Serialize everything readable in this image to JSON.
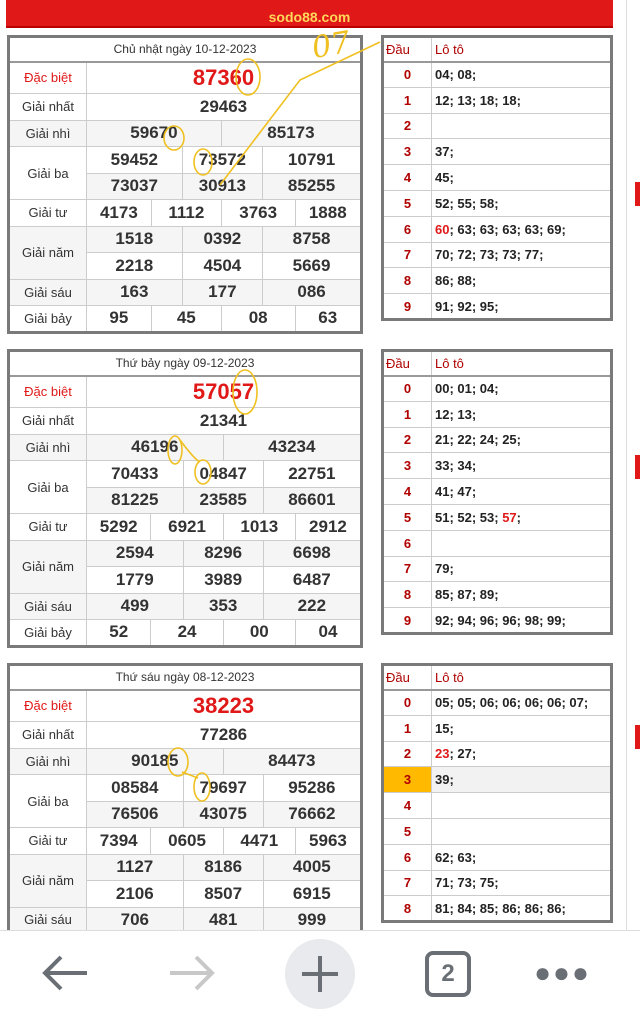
{
  "banner": {
    "site": "sodo88.com"
  },
  "handwriting": {
    "note": "07"
  },
  "colors": {
    "accent": "#e01818",
    "highlight": "#ffba00",
    "annotation": "#f0c020"
  },
  "results": [
    {
      "title": "Chủ nhật ngày 10-12-2023",
      "prizes": [
        {
          "label": "Đặc biệt",
          "numbers": [
            "87360"
          ]
        },
        {
          "label": "Giải nhất",
          "numbers": [
            "29463"
          ]
        },
        {
          "label": "Giải nhì",
          "numbers": [
            "59670",
            "85173"
          ]
        },
        {
          "label": "Giải ba",
          "numbers": [
            "59452",
            "73572",
            "10791",
            "73037",
            "30913",
            "85255"
          ]
        },
        {
          "label": "Giải tư",
          "numbers": [
            "4173",
            "1112",
            "3763",
            "1888"
          ]
        },
        {
          "label": "Giải năm",
          "numbers": [
            "1518",
            "0392",
            "8758",
            "2218",
            "4504",
            "5669"
          ]
        },
        {
          "label": "Giải sáu",
          "numbers": [
            "163",
            "177",
            "086"
          ]
        },
        {
          "label": "Giải bảy",
          "numbers": [
            "95",
            "45",
            "08",
            "63"
          ]
        }
      ],
      "loto_header": {
        "dau": "Đầu",
        "loto": "Lô tô"
      },
      "loto": [
        {
          "dau": "0",
          "red": "",
          "values": "04; 08;"
        },
        {
          "dau": "1",
          "red": "",
          "values": "12; 13; 18; 18;"
        },
        {
          "dau": "2",
          "red": "",
          "values": ""
        },
        {
          "dau": "3",
          "red": "",
          "values": "37;"
        },
        {
          "dau": "4",
          "red": "",
          "values": "45;"
        },
        {
          "dau": "5",
          "red": "",
          "values": "52; 55; 58;"
        },
        {
          "dau": "6",
          "red": "60",
          "values": "; 63; 63; 63; 63; 69;"
        },
        {
          "dau": "7",
          "red": "",
          "values": "70; 72; 73; 73; 77;"
        },
        {
          "dau": "8",
          "red": "",
          "values": "86; 88;"
        },
        {
          "dau": "9",
          "red": "",
          "values": "91; 92; 95;"
        }
      ]
    },
    {
      "title": "Thứ bảy ngày 09-12-2023",
      "prizes": [
        {
          "label": "Đặc biệt",
          "numbers": [
            "57057"
          ]
        },
        {
          "label": "Giải nhất",
          "numbers": [
            "21341"
          ]
        },
        {
          "label": "Giải nhì",
          "numbers": [
            "46196",
            "43234"
          ]
        },
        {
          "label": "Giải ba",
          "numbers": [
            "70433",
            "04847",
            "22751",
            "81225",
            "23585",
            "86601"
          ]
        },
        {
          "label": "Giải tư",
          "numbers": [
            "5292",
            "6921",
            "1013",
            "2912"
          ]
        },
        {
          "label": "Giải năm",
          "numbers": [
            "2594",
            "8296",
            "6698",
            "1779",
            "3989",
            "6487"
          ]
        },
        {
          "label": "Giải sáu",
          "numbers": [
            "499",
            "353",
            "222"
          ]
        },
        {
          "label": "Giải bảy",
          "numbers": [
            "52",
            "24",
            "00",
            "04"
          ]
        }
      ],
      "loto_header": {
        "dau": "Đầu",
        "loto": "Lô tô"
      },
      "loto": [
        {
          "dau": "0",
          "red": "",
          "values": "00; 01; 04;"
        },
        {
          "dau": "1",
          "red": "",
          "values": "12; 13;"
        },
        {
          "dau": "2",
          "red": "",
          "values": "21; 22; 24; 25;"
        },
        {
          "dau": "3",
          "red": "",
          "values": "33; 34;"
        },
        {
          "dau": "4",
          "red": "",
          "values": "41; 47;"
        },
        {
          "dau": "5",
          "red": "",
          "values": "51; 52; 53; ",
          "red_after": "57",
          "after": ";"
        },
        {
          "dau": "6",
          "red": "",
          "values": ""
        },
        {
          "dau": "7",
          "red": "",
          "values": "79;"
        },
        {
          "dau": "8",
          "red": "",
          "values": "85; 87; 89;"
        },
        {
          "dau": "9",
          "red": "",
          "values": "92; 94; 96; 96; 98; 99;"
        }
      ]
    },
    {
      "title": "Thứ sáu ngày 08-12-2023",
      "prizes": [
        {
          "label": "Đặc biệt",
          "numbers": [
            "38223"
          ]
        },
        {
          "label": "Giải nhất",
          "numbers": [
            "77286"
          ]
        },
        {
          "label": "Giải nhì",
          "numbers": [
            "90185",
            "84473"
          ]
        },
        {
          "label": "Giải ba",
          "numbers": [
            "08584",
            "79697",
            "95286",
            "76506",
            "43075",
            "76662"
          ]
        },
        {
          "label": "Giải tư",
          "numbers": [
            "7394",
            "0605",
            "4471",
            "5963"
          ]
        },
        {
          "label": "Giải năm",
          "numbers": [
            "1127",
            "8186",
            "4005",
            "2106",
            "8507",
            "6915"
          ]
        },
        {
          "label": "Giải sáu",
          "numbers": [
            "706",
            "481",
            "999"
          ]
        }
      ],
      "loto_header": {
        "dau": "Đầu",
        "loto": "Lô tô"
      },
      "loto": [
        {
          "dau": "0",
          "red": "",
          "values": "05; 05; 06; 06; 06; 06; 07;"
        },
        {
          "dau": "1",
          "red": "",
          "values": "15;"
        },
        {
          "dau": "2",
          "red": "23",
          "values": "; 27;"
        },
        {
          "dau": "3",
          "red": "",
          "values": "39;",
          "highlighted": true
        },
        {
          "dau": "4",
          "red": "",
          "values": ""
        },
        {
          "dau": "5",
          "red": "",
          "values": ""
        },
        {
          "dau": "6",
          "red": "",
          "values": "62; 63;"
        },
        {
          "dau": "7",
          "red": "",
          "values": "71; 73; 75;"
        },
        {
          "dau": "8",
          "red": "",
          "values": "81; 84; 85; 86; 86; 86;"
        }
      ]
    }
  ],
  "bottom_nav": {
    "back": "back-arrow-icon",
    "forward": "forward-arrow-icon",
    "new_tab": "plus-icon",
    "tab_count": "2",
    "menu": "more-dots-icon"
  }
}
